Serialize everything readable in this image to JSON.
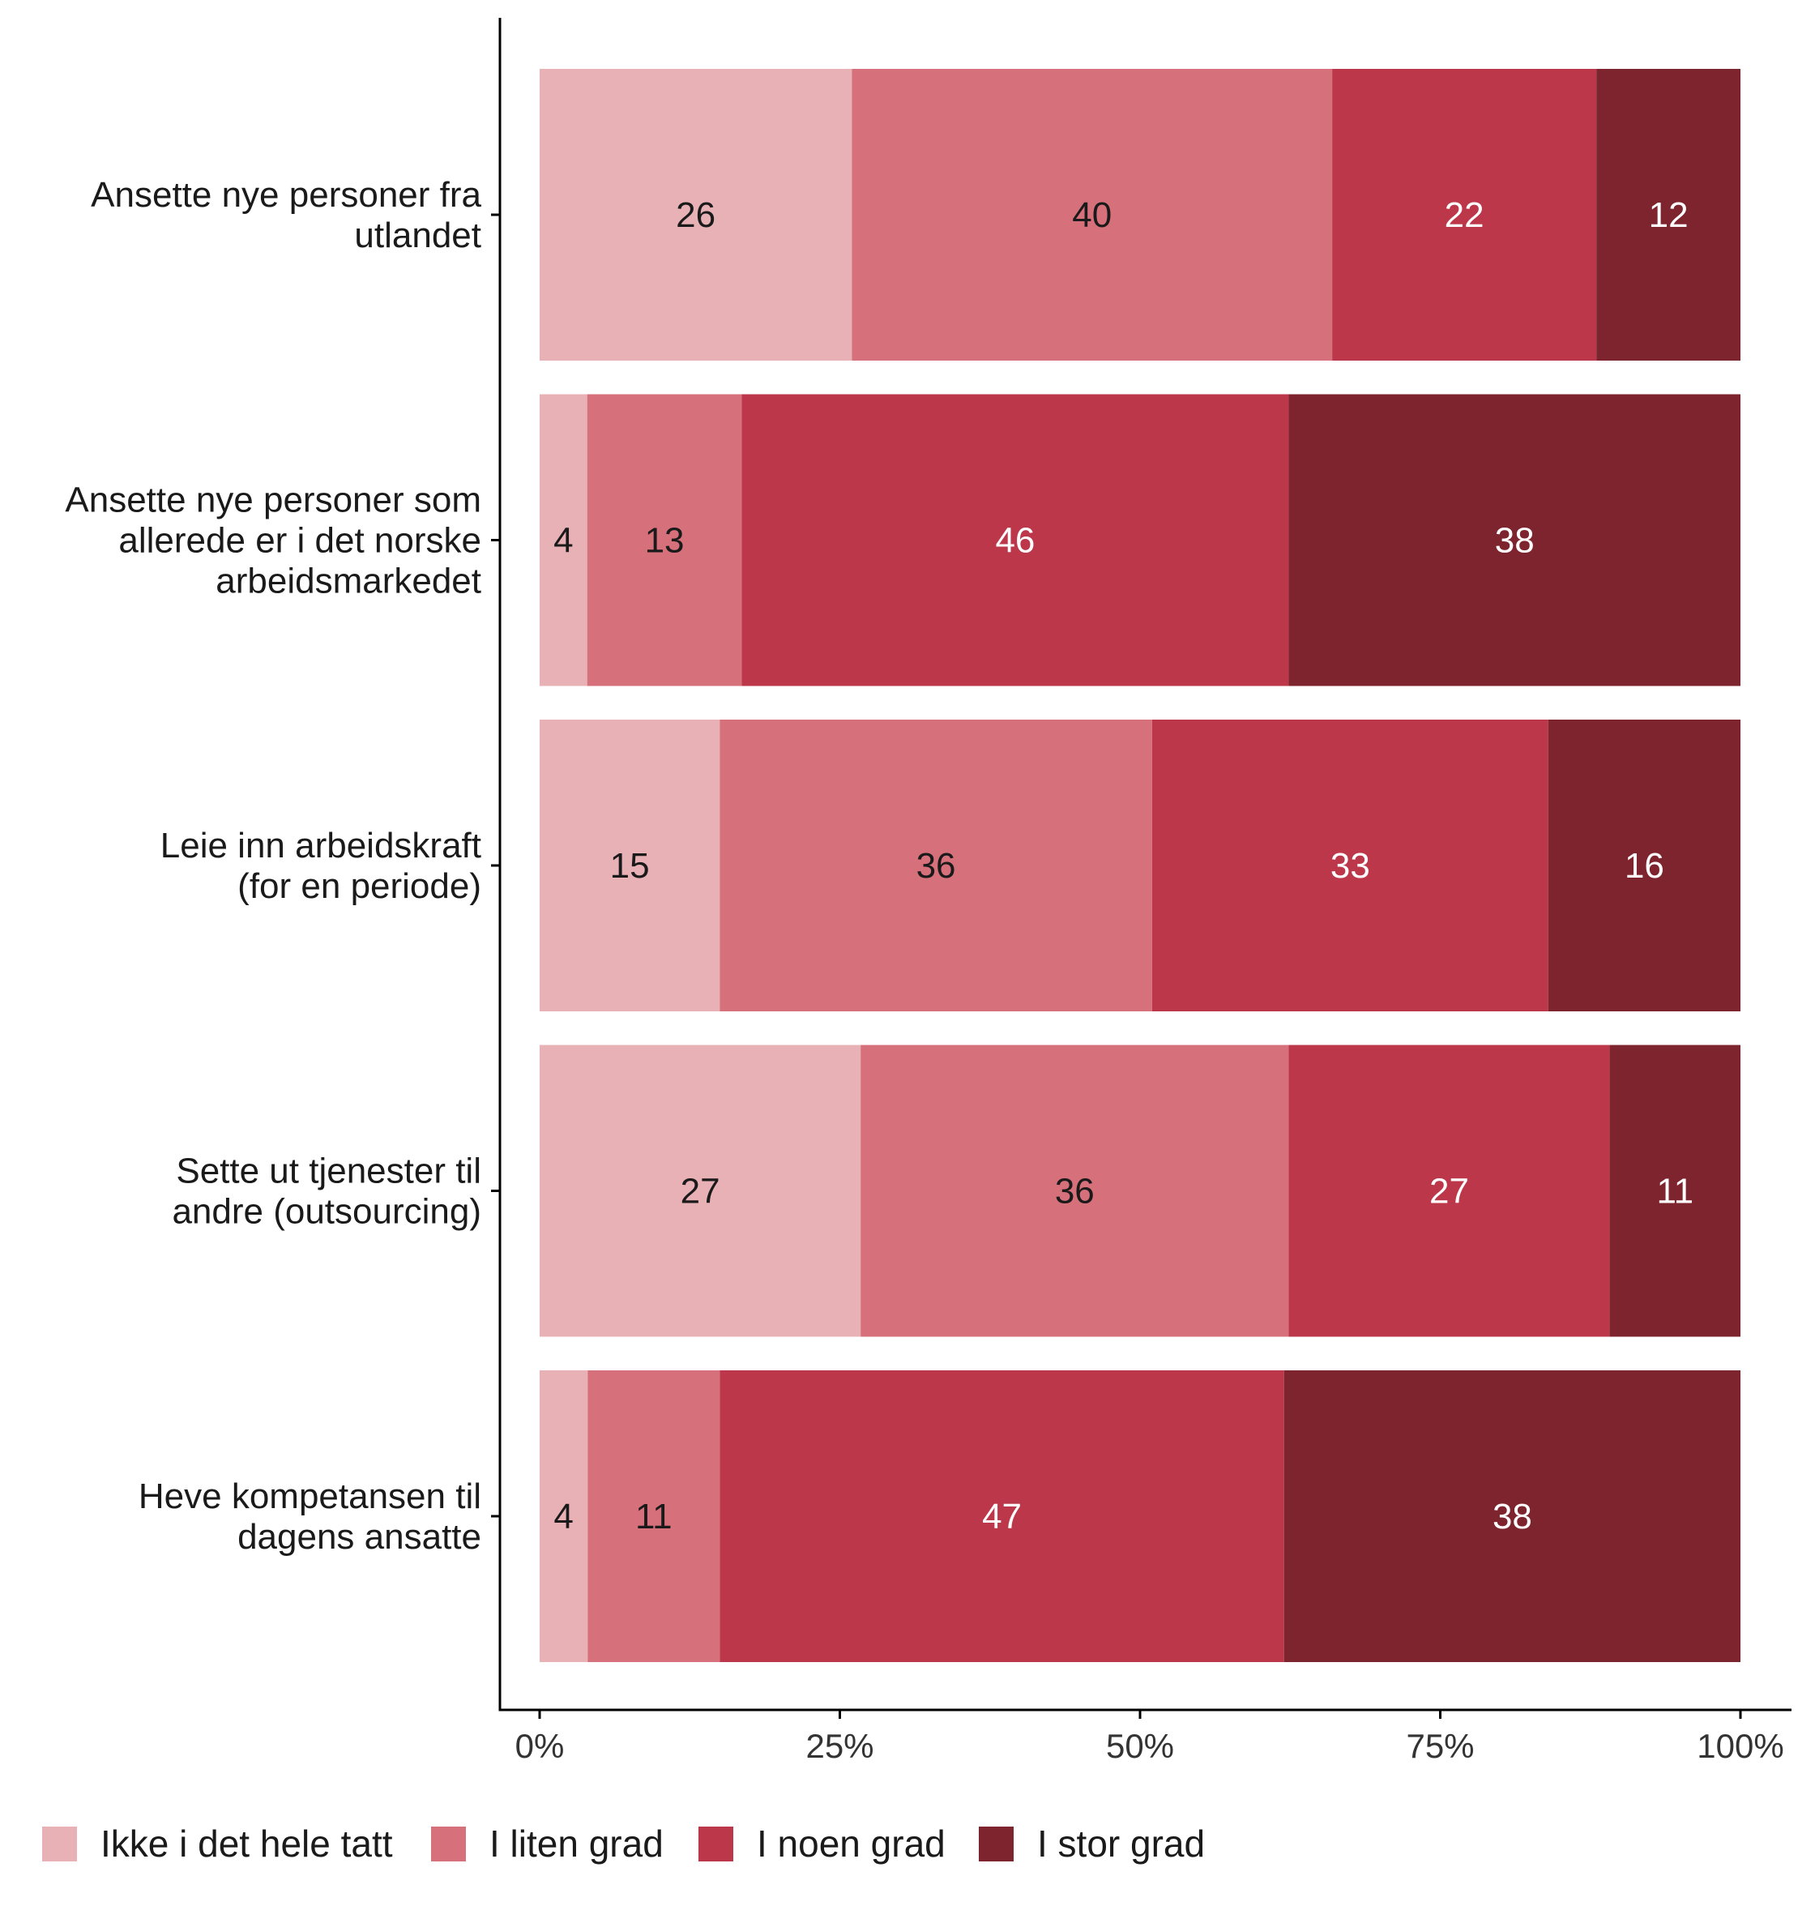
{
  "chart_data": {
    "type": "bar",
    "orientation": "horizontal",
    "stacked": true,
    "normalized": true,
    "categories": [
      [
        "Ansette nye personer fra",
        "utlandet"
      ],
      [
        "Ansette nye personer som",
        "allerede er i det norske",
        "arbeidsmarkedet"
      ],
      [
        "Leie inn arbeidskraft",
        "(for en periode)"
      ],
      [
        "Sette ut tjenester til",
        "andre (outsourcing)"
      ],
      [
        "Heve kompetansen til",
        "dagens ansatte"
      ]
    ],
    "series": [
      {
        "name": "Ikke i det hele tatt",
        "color": "#E8B1B6",
        "label_color": "#1a1a1a",
        "values": [
          26,
          4,
          15,
          27,
          4
        ]
      },
      {
        "name": "I liten grad",
        "color": "#D6707B",
        "label_color": "#1a1a1a",
        "values": [
          40,
          13,
          36,
          36,
          11
        ]
      },
      {
        "name": "I noen grad",
        "color": "#BC3749",
        "label_color": "#ffffff",
        "values": [
          22,
          46,
          33,
          27,
          47
        ]
      },
      {
        "name": "I stor grad",
        "color": "#7D242F",
        "label_color": "#ffffff",
        "values": [
          12,
          38,
          16,
          11,
          38
        ]
      }
    ],
    "x_ticks": [
      "0%",
      "25%",
      "50%",
      "75%",
      "100%"
    ],
    "xlim": [
      0,
      1
    ],
    "xlabel": "",
    "ylabel": "",
    "title": "",
    "grid": false,
    "legend": "bottom"
  }
}
